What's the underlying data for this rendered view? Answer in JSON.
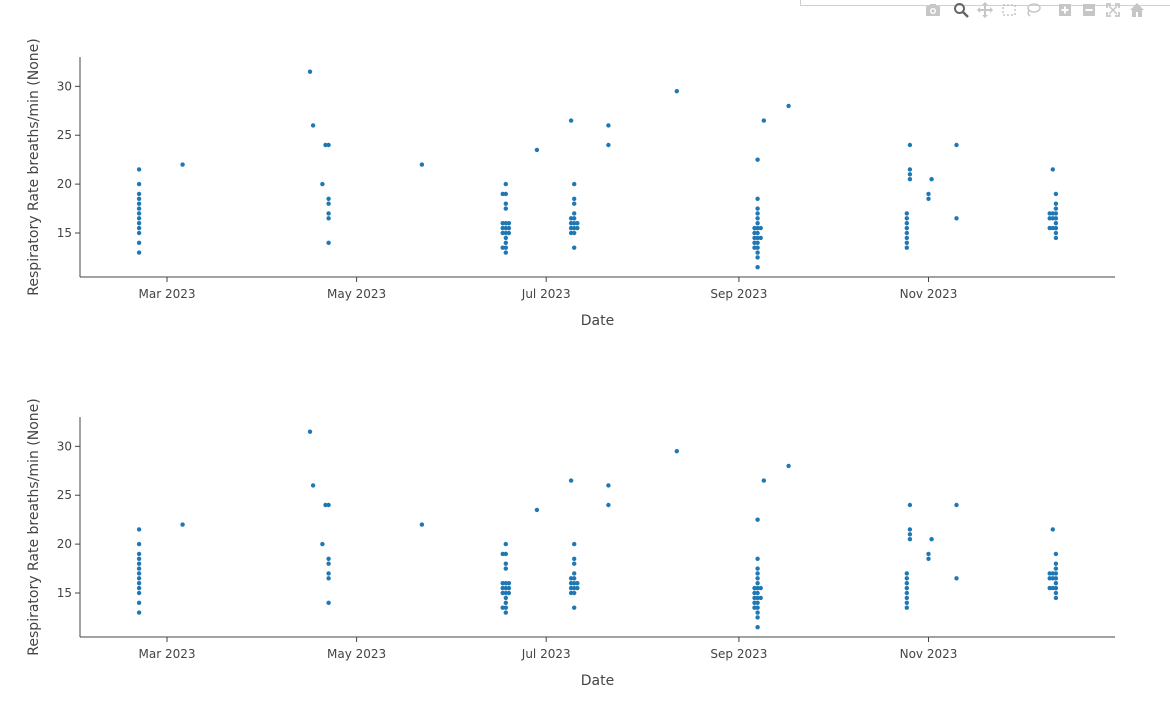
{
  "modebar": {
    "icons": [
      "camera-icon",
      "zoom-icon",
      "pan-icon",
      "box-select-icon",
      "lasso-icon",
      "zoom-in-icon",
      "zoom-out-icon",
      "autoscale-icon",
      "home-icon"
    ]
  },
  "colors": {
    "marker": "#1f77b4",
    "axis": "#444444"
  },
  "chart_data": [
    {
      "type": "scatter",
      "xlabel": "Date",
      "ylabel": "Respiratory Rate breaths/min (None)",
      "xlim": [
        "2023-02-01",
        "2023-12-31"
      ],
      "ylim": [
        10.5,
        33
      ],
      "xticks": [
        "2023-03-01",
        "2023-05-01",
        "2023-07-01",
        "2023-09-01",
        "2023-11-01"
      ],
      "xtick_labels": [
        "Mar 2023",
        "May 2023",
        "Jul 2023",
        "Sep 2023",
        "Nov 2023"
      ],
      "yticks": [
        15,
        20,
        25,
        30
      ],
      "ytick_labels": [
        "15",
        "20",
        "25",
        "30"
      ],
      "series": [
        {
          "color": "#1f77b4",
          "points": [
            [
              "2023-02-20",
              13
            ],
            [
              "2023-02-20",
              14
            ],
            [
              "2023-02-20",
              15
            ],
            [
              "2023-02-20",
              15.5
            ],
            [
              "2023-02-20",
              16
            ],
            [
              "2023-02-20",
              16.5
            ],
            [
              "2023-02-20",
              17
            ],
            [
              "2023-02-20",
              17.5
            ],
            [
              "2023-02-20",
              18
            ],
            [
              "2023-02-20",
              18.5
            ],
            [
              "2023-02-20",
              19
            ],
            [
              "2023-02-20",
              20
            ],
            [
              "2023-02-20",
              21.5
            ],
            [
              "2023-03-06",
              22
            ],
            [
              "2023-04-16",
              31.5
            ],
            [
              "2023-04-17",
              26
            ],
            [
              "2023-04-21",
              24
            ],
            [
              "2023-04-22",
              24
            ],
            [
              "2023-04-20",
              20
            ],
            [
              "2023-04-22",
              18.5
            ],
            [
              "2023-04-22",
              18
            ],
            [
              "2023-04-22",
              17
            ],
            [
              "2023-04-22",
              16.5
            ],
            [
              "2023-04-22",
              14
            ],
            [
              "2023-05-22",
              22
            ],
            [
              "2023-06-18",
              13
            ],
            [
              "2023-06-18",
              13.5
            ],
            [
              "2023-06-18",
              14
            ],
            [
              "2023-06-18",
              14.5
            ],
            [
              "2023-06-18",
              15
            ],
            [
              "2023-06-18",
              15.5
            ],
            [
              "2023-06-18",
              16
            ],
            [
              "2023-06-18",
              17.5
            ],
            [
              "2023-06-18",
              18
            ],
            [
              "2023-06-18",
              19
            ],
            [
              "2023-06-18",
              20
            ],
            [
              "2023-06-17",
              13.5
            ],
            [
              "2023-06-17",
              15
            ],
            [
              "2023-06-17",
              15.5
            ],
            [
              "2023-06-17",
              16
            ],
            [
              "2023-06-17",
              19
            ],
            [
              "2023-06-19",
              15
            ],
            [
              "2023-06-19",
              15.5
            ],
            [
              "2023-06-19",
              16
            ],
            [
              "2023-06-28",
              23.5
            ],
            [
              "2023-07-10",
              13.5
            ],
            [
              "2023-07-10",
              15
            ],
            [
              "2023-07-10",
              15.5
            ],
            [
              "2023-07-10",
              16
            ],
            [
              "2023-07-10",
              16.5
            ],
            [
              "2023-07-10",
              17
            ],
            [
              "2023-07-10",
              18
            ],
            [
              "2023-07-10",
              18.5
            ],
            [
              "2023-07-10",
              20
            ],
            [
              "2023-07-09",
              15
            ],
            [
              "2023-07-09",
              15.5
            ],
            [
              "2023-07-09",
              16
            ],
            [
              "2023-07-09",
              16.5
            ],
            [
              "2023-07-09",
              26.5
            ],
            [
              "2023-07-11",
              15.5
            ],
            [
              "2023-07-11",
              16
            ],
            [
              "2023-07-21",
              24
            ],
            [
              "2023-07-21",
              26
            ],
            [
              "2023-08-12",
              29.5
            ],
            [
              "2023-09-07",
              11.5
            ],
            [
              "2023-09-07",
              12.5
            ],
            [
              "2023-09-07",
              13
            ],
            [
              "2023-09-07",
              13.5
            ],
            [
              "2023-09-07",
              14
            ],
            [
              "2023-09-07",
              14.5
            ],
            [
              "2023-09-07",
              15
            ],
            [
              "2023-09-07",
              15.5
            ],
            [
              "2023-09-07",
              16
            ],
            [
              "2023-09-07",
              16.5
            ],
            [
              "2023-09-07",
              17
            ],
            [
              "2023-09-07",
              17.5
            ],
            [
              "2023-09-07",
              18.5
            ],
            [
              "2023-09-07",
              22.5
            ],
            [
              "2023-09-06",
              13.5
            ],
            [
              "2023-09-06",
              14
            ],
            [
              "2023-09-06",
              14.5
            ],
            [
              "2023-09-06",
              15
            ],
            [
              "2023-09-06",
              15.5
            ],
            [
              "2023-09-08",
              14.5
            ],
            [
              "2023-09-08",
              15.5
            ],
            [
              "2023-09-09",
              26.5
            ],
            [
              "2023-09-17",
              28
            ],
            [
              "2023-10-25",
              13.5
            ],
            [
              "2023-10-25",
              14
            ],
            [
              "2023-10-25",
              14.5
            ],
            [
              "2023-10-25",
              15
            ],
            [
              "2023-10-25",
              15.5
            ],
            [
              "2023-10-25",
              16
            ],
            [
              "2023-10-25",
              16.5
            ],
            [
              "2023-10-25",
              17
            ],
            [
              "2023-10-26",
              20.5
            ],
            [
              "2023-10-26",
              21
            ],
            [
              "2023-10-26",
              21.5
            ],
            [
              "2023-10-26",
              24
            ],
            [
              "2023-11-01",
              18.5
            ],
            [
              "2023-11-01",
              19
            ],
            [
              "2023-11-02",
              20.5
            ],
            [
              "2023-11-10",
              16.5
            ],
            [
              "2023-11-10",
              24
            ],
            [
              "2023-12-12",
              14.5
            ],
            [
              "2023-12-12",
              15
            ],
            [
              "2023-12-12",
              15.5
            ],
            [
              "2023-12-12",
              16
            ],
            [
              "2023-12-12",
              16.5
            ],
            [
              "2023-12-12",
              17
            ],
            [
              "2023-12-12",
              17.5
            ],
            [
              "2023-12-12",
              18
            ],
            [
              "2023-12-12",
              19
            ],
            [
              "2023-12-11",
              15.5
            ],
            [
              "2023-12-11",
              16.5
            ],
            [
              "2023-12-11",
              17
            ],
            [
              "2023-12-11",
              21.5
            ],
            [
              "2023-12-10",
              15.5
            ],
            [
              "2023-12-10",
              16.5
            ],
            [
              "2023-12-10",
              17
            ]
          ]
        }
      ]
    },
    {
      "type": "scatter",
      "xlabel": "Date",
      "ylabel": "Respiratory Rate breaths/min (None)",
      "xlim": [
        "2023-02-01",
        "2023-12-31"
      ],
      "ylim": [
        10.5,
        33
      ],
      "xticks": [
        "2023-03-01",
        "2023-05-01",
        "2023-07-01",
        "2023-09-01",
        "2023-11-01"
      ],
      "xtick_labels": [
        "Mar 2023",
        "May 2023",
        "Jul 2023",
        "Sep 2023",
        "Nov 2023"
      ],
      "yticks": [
        15,
        20,
        25,
        30
      ],
      "ytick_labels": [
        "15",
        "20",
        "25",
        "30"
      ],
      "series": [
        {
          "color": "#1f77b4",
          "points": [
            [
              "2023-02-20",
              13
            ],
            [
              "2023-02-20",
              14
            ],
            [
              "2023-02-20",
              15
            ],
            [
              "2023-02-20",
              15.5
            ],
            [
              "2023-02-20",
              16
            ],
            [
              "2023-02-20",
              16.5
            ],
            [
              "2023-02-20",
              17
            ],
            [
              "2023-02-20",
              17.5
            ],
            [
              "2023-02-20",
              18
            ],
            [
              "2023-02-20",
              18.5
            ],
            [
              "2023-02-20",
              19
            ],
            [
              "2023-02-20",
              20
            ],
            [
              "2023-02-20",
              21.5
            ],
            [
              "2023-03-06",
              22
            ],
            [
              "2023-04-16",
              31.5
            ],
            [
              "2023-04-17",
              26
            ],
            [
              "2023-04-21",
              24
            ],
            [
              "2023-04-22",
              24
            ],
            [
              "2023-04-20",
              20
            ],
            [
              "2023-04-22",
              18.5
            ],
            [
              "2023-04-22",
              18
            ],
            [
              "2023-04-22",
              17
            ],
            [
              "2023-04-22",
              16.5
            ],
            [
              "2023-04-22",
              14
            ],
            [
              "2023-05-22",
              22
            ],
            [
              "2023-06-18",
              13
            ],
            [
              "2023-06-18",
              13.5
            ],
            [
              "2023-06-18",
              14
            ],
            [
              "2023-06-18",
              14.5
            ],
            [
              "2023-06-18",
              15
            ],
            [
              "2023-06-18",
              15.5
            ],
            [
              "2023-06-18",
              16
            ],
            [
              "2023-06-18",
              17.5
            ],
            [
              "2023-06-18",
              18
            ],
            [
              "2023-06-18",
              19
            ],
            [
              "2023-06-18",
              20
            ],
            [
              "2023-06-17",
              13.5
            ],
            [
              "2023-06-17",
              15
            ],
            [
              "2023-06-17",
              15.5
            ],
            [
              "2023-06-17",
              16
            ],
            [
              "2023-06-17",
              19
            ],
            [
              "2023-06-19",
              15
            ],
            [
              "2023-06-19",
              15.5
            ],
            [
              "2023-06-19",
              16
            ],
            [
              "2023-06-28",
              23.5
            ],
            [
              "2023-07-10",
              13.5
            ],
            [
              "2023-07-10",
              15
            ],
            [
              "2023-07-10",
              15.5
            ],
            [
              "2023-07-10",
              16
            ],
            [
              "2023-07-10",
              16.5
            ],
            [
              "2023-07-10",
              17
            ],
            [
              "2023-07-10",
              18
            ],
            [
              "2023-07-10",
              18.5
            ],
            [
              "2023-07-10",
              20
            ],
            [
              "2023-07-09",
              15
            ],
            [
              "2023-07-09",
              15.5
            ],
            [
              "2023-07-09",
              16
            ],
            [
              "2023-07-09",
              16.5
            ],
            [
              "2023-07-09",
              26.5
            ],
            [
              "2023-07-11",
              15.5
            ],
            [
              "2023-07-11",
              16
            ],
            [
              "2023-07-21",
              24
            ],
            [
              "2023-07-21",
              26
            ],
            [
              "2023-08-12",
              29.5
            ],
            [
              "2023-09-07",
              11.5
            ],
            [
              "2023-09-07",
              12.5
            ],
            [
              "2023-09-07",
              13
            ],
            [
              "2023-09-07",
              13.5
            ],
            [
              "2023-09-07",
              14
            ],
            [
              "2023-09-07",
              14.5
            ],
            [
              "2023-09-07",
              15
            ],
            [
              "2023-09-07",
              15.5
            ],
            [
              "2023-09-07",
              16
            ],
            [
              "2023-09-07",
              16.5
            ],
            [
              "2023-09-07",
              17
            ],
            [
              "2023-09-07",
              17.5
            ],
            [
              "2023-09-07",
              18.5
            ],
            [
              "2023-09-07",
              22.5
            ],
            [
              "2023-09-06",
              13.5
            ],
            [
              "2023-09-06",
              14
            ],
            [
              "2023-09-06",
              14.5
            ],
            [
              "2023-09-06",
              15
            ],
            [
              "2023-09-06",
              15.5
            ],
            [
              "2023-09-08",
              14.5
            ],
            [
              "2023-09-08",
              15.5
            ],
            [
              "2023-09-09",
              26.5
            ],
            [
              "2023-09-17",
              28
            ],
            [
              "2023-10-25",
              13.5
            ],
            [
              "2023-10-25",
              14
            ],
            [
              "2023-10-25",
              14.5
            ],
            [
              "2023-10-25",
              15
            ],
            [
              "2023-10-25",
              15.5
            ],
            [
              "2023-10-25",
              16
            ],
            [
              "2023-10-25",
              16.5
            ],
            [
              "2023-10-25",
              17
            ],
            [
              "2023-10-26",
              20.5
            ],
            [
              "2023-10-26",
              21
            ],
            [
              "2023-10-26",
              21.5
            ],
            [
              "2023-10-26",
              24
            ],
            [
              "2023-11-01",
              18.5
            ],
            [
              "2023-11-01",
              19
            ],
            [
              "2023-11-02",
              20.5
            ],
            [
              "2023-11-10",
              16.5
            ],
            [
              "2023-11-10",
              24
            ],
            [
              "2023-12-12",
              14.5
            ],
            [
              "2023-12-12",
              15
            ],
            [
              "2023-12-12",
              15.5
            ],
            [
              "2023-12-12",
              16
            ],
            [
              "2023-12-12",
              16.5
            ],
            [
              "2023-12-12",
              17
            ],
            [
              "2023-12-12",
              17.5
            ],
            [
              "2023-12-12",
              18
            ],
            [
              "2023-12-12",
              19
            ],
            [
              "2023-12-11",
              15.5
            ],
            [
              "2023-12-11",
              16.5
            ],
            [
              "2023-12-11",
              17
            ],
            [
              "2023-12-11",
              21.5
            ],
            [
              "2023-12-10",
              15.5
            ],
            [
              "2023-12-10",
              16.5
            ],
            [
              "2023-12-10",
              17
            ]
          ]
        }
      ]
    }
  ]
}
